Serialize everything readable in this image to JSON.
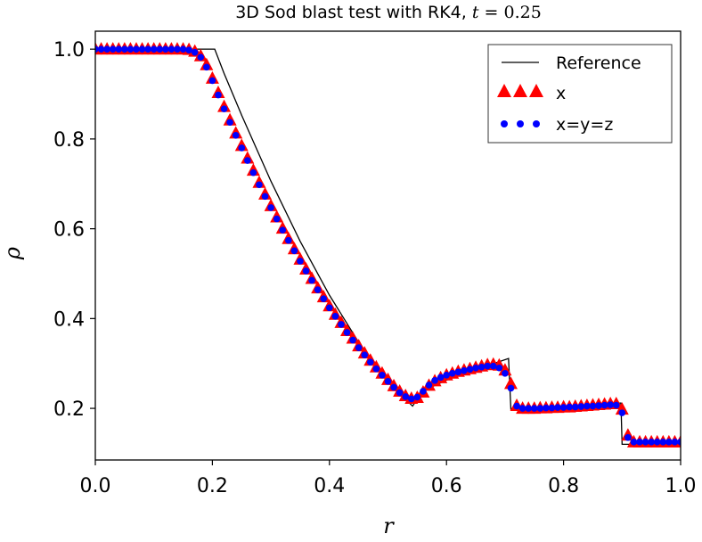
{
  "chart_data": {
    "type": "line",
    "title_prefix": "3D Sod blast test with RK4,",
    "title_var": "t",
    "title_eq": " = ",
    "title_value": "0.25",
    "xlabel": "r",
    "ylabel": "ρ",
    "xlim": [
      0.0,
      1.0
    ],
    "ylim": [
      0.085,
      1.04
    ],
    "xticks": [
      0.0,
      0.2,
      0.4,
      0.6,
      0.8,
      1.0
    ],
    "xtick_labels": [
      "0.0",
      "0.2",
      "0.4",
      "0.6",
      "0.8",
      "1.0"
    ],
    "yticks": [
      0.2,
      0.4,
      0.6,
      0.8,
      1.0
    ],
    "ytick_labels": [
      "0.2",
      "0.4",
      "0.6",
      "0.8",
      "1.0"
    ],
    "grid": false,
    "legend_position": "top-right",
    "series": [
      {
        "name": "Reference",
        "style": "line",
        "color": "#000000",
        "x": [
          0.0,
          0.204,
          0.22,
          0.25,
          0.3,
          0.35,
          0.4,
          0.45,
          0.5,
          0.542,
          0.56,
          0.6,
          0.65,
          0.706,
          0.71,
          0.75,
          0.8,
          0.85,
          0.898,
          0.9,
          1.0
        ],
        "y": [
          1.0,
          1.0,
          0.946,
          0.853,
          0.706,
          0.572,
          0.452,
          0.347,
          0.258,
          0.205,
          0.239,
          0.263,
          0.286,
          0.311,
          0.198,
          0.198,
          0.201,
          0.206,
          0.212,
          0.12,
          0.12
        ]
      },
      {
        "name": "x",
        "style": "triangle",
        "color": "#ff0000",
        "x": [
          0.0,
          0.01,
          0.02,
          0.03,
          0.04,
          0.05,
          0.06,
          0.07,
          0.08,
          0.09,
          0.1,
          0.11,
          0.12,
          0.13,
          0.14,
          0.15,
          0.16,
          0.17,
          0.18,
          0.19,
          0.2,
          0.21,
          0.22,
          0.23,
          0.24,
          0.25,
          0.26,
          0.27,
          0.28,
          0.29,
          0.3,
          0.31,
          0.32,
          0.33,
          0.34,
          0.35,
          0.36,
          0.37,
          0.38,
          0.39,
          0.4,
          0.41,
          0.42,
          0.43,
          0.44,
          0.45,
          0.46,
          0.47,
          0.48,
          0.49,
          0.5,
          0.51,
          0.52,
          0.53,
          0.54,
          0.55,
          0.56,
          0.57,
          0.58,
          0.59,
          0.6,
          0.61,
          0.62,
          0.63,
          0.64,
          0.65,
          0.66,
          0.67,
          0.68,
          0.69,
          0.7,
          0.71,
          0.72,
          0.73,
          0.74,
          0.75,
          0.76,
          0.77,
          0.78,
          0.79,
          0.8,
          0.81,
          0.82,
          0.83,
          0.84,
          0.85,
          0.86,
          0.87,
          0.88,
          0.89,
          0.9,
          0.91,
          0.92,
          0.93,
          0.94,
          0.95,
          0.96,
          0.97,
          0.98,
          0.99,
          1.0
        ],
        "y": [
          1.0,
          1.0,
          1.0,
          1.0,
          1.0,
          1.0,
          1.0,
          1.0,
          1.0,
          1.0,
          1.0,
          1.0,
          1.0,
          1.0,
          1.0,
          1.0,
          0.999,
          0.995,
          0.985,
          0.965,
          0.935,
          0.903,
          0.872,
          0.842,
          0.813,
          0.785,
          0.757,
          0.73,
          0.703,
          0.677,
          0.651,
          0.626,
          0.601,
          0.578,
          0.555,
          0.532,
          0.51,
          0.489,
          0.468,
          0.448,
          0.428,
          0.409,
          0.391,
          0.373,
          0.356,
          0.339,
          0.323,
          0.307,
          0.292,
          0.278,
          0.264,
          0.25,
          0.238,
          0.228,
          0.222,
          0.224,
          0.236,
          0.251,
          0.261,
          0.268,
          0.274,
          0.278,
          0.282,
          0.285,
          0.288,
          0.291,
          0.294,
          0.297,
          0.298,
          0.296,
          0.285,
          0.255,
          0.206,
          0.2,
          0.2,
          0.2,
          0.201,
          0.201,
          0.202,
          0.202,
          0.203,
          0.203,
          0.204,
          0.205,
          0.206,
          0.207,
          0.208,
          0.209,
          0.21,
          0.21,
          0.198,
          0.14,
          0.125,
          0.125,
          0.125,
          0.125,
          0.125,
          0.125,
          0.125,
          0.125,
          0.125
        ]
      },
      {
        "name": "x=y=z",
        "style": "dot",
        "color": "#0000ff",
        "x": [
          0.0,
          0.01,
          0.02,
          0.03,
          0.04,
          0.05,
          0.06,
          0.07,
          0.08,
          0.09,
          0.1,
          0.11,
          0.12,
          0.13,
          0.14,
          0.15,
          0.16,
          0.17,
          0.18,
          0.19,
          0.2,
          0.21,
          0.22,
          0.23,
          0.24,
          0.25,
          0.26,
          0.27,
          0.28,
          0.29,
          0.3,
          0.31,
          0.32,
          0.33,
          0.34,
          0.35,
          0.36,
          0.37,
          0.38,
          0.39,
          0.4,
          0.41,
          0.42,
          0.43,
          0.44,
          0.45,
          0.46,
          0.47,
          0.48,
          0.49,
          0.5,
          0.51,
          0.52,
          0.53,
          0.54,
          0.55,
          0.56,
          0.57,
          0.58,
          0.59,
          0.6,
          0.61,
          0.62,
          0.63,
          0.64,
          0.65,
          0.66,
          0.67,
          0.68,
          0.69,
          0.7,
          0.71,
          0.72,
          0.73,
          0.74,
          0.75,
          0.76,
          0.77,
          0.78,
          0.79,
          0.8,
          0.81,
          0.82,
          0.83,
          0.84,
          0.85,
          0.86,
          0.87,
          0.88,
          0.89,
          0.9,
          0.91,
          0.92,
          0.93,
          0.94,
          0.95,
          0.96,
          0.97,
          0.98,
          0.99,
          1.0
        ],
        "y": [
          1.0,
          1.0,
          1.0,
          1.0,
          1.0,
          1.0,
          1.0,
          1.0,
          1.0,
          1.0,
          1.0,
          1.0,
          1.0,
          1.0,
          1.0,
          1.0,
          0.998,
          0.993,
          0.982,
          0.96,
          0.93,
          0.898,
          0.867,
          0.837,
          0.808,
          0.78,
          0.752,
          0.725,
          0.698,
          0.672,
          0.647,
          0.622,
          0.597,
          0.574,
          0.551,
          0.528,
          0.506,
          0.485,
          0.464,
          0.444,
          0.424,
          0.405,
          0.387,
          0.369,
          0.352,
          0.335,
          0.319,
          0.303,
          0.288,
          0.274,
          0.26,
          0.247,
          0.235,
          0.226,
          0.221,
          0.225,
          0.238,
          0.252,
          0.262,
          0.269,
          0.274,
          0.278,
          0.281,
          0.284,
          0.287,
          0.29,
          0.292,
          0.294,
          0.294,
          0.29,
          0.278,
          0.245,
          0.205,
          0.2,
          0.2,
          0.2,
          0.2,
          0.201,
          0.201,
          0.202,
          0.202,
          0.203,
          0.203,
          0.204,
          0.205,
          0.205,
          0.206,
          0.207,
          0.208,
          0.207,
          0.19,
          0.135,
          0.125,
          0.125,
          0.125,
          0.125,
          0.125,
          0.125,
          0.125,
          0.125,
          0.125
        ]
      }
    ]
  }
}
